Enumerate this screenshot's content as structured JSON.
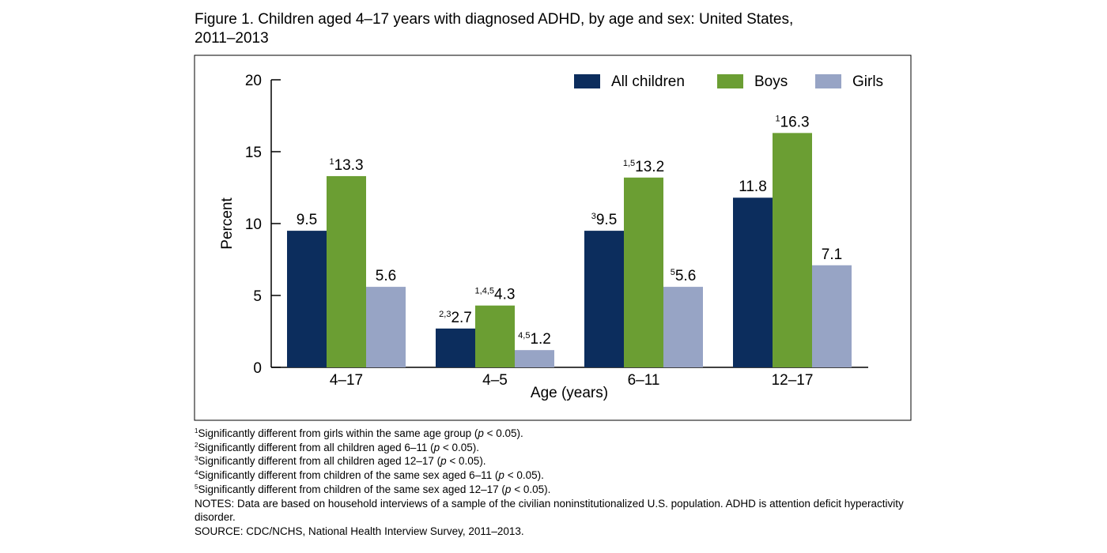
{
  "figure": {
    "title_line1": "Figure 1. Children aged 4–17 years with diagnosed ADHD, by age and sex: United States,",
    "title_line2": "2011–2013"
  },
  "chart_data": {
    "type": "bar",
    "title": "Figure 1. Children aged 4–17 years with diagnosed ADHD, by age and sex: United States, 2011–2013",
    "xlabel": "Age (years)",
    "ylabel": "Percent",
    "ylim": [
      0,
      20
    ],
    "yticks": [
      0,
      5,
      10,
      15,
      20
    ],
    "grid": false,
    "legend_position": "top-right",
    "categories": [
      "4–17",
      "4–5",
      "6–11",
      "12–17"
    ],
    "series": [
      {
        "name": "All children",
        "color": "#0c2d5d",
        "values": [
          9.5,
          2.7,
          9.5,
          11.8
        ],
        "labels": [
          "9.5",
          "2.7",
          "9.5",
          "11.8"
        ],
        "superscripts": [
          "",
          "2,3",
          "3",
          ""
        ]
      },
      {
        "name": "Boys",
        "color": "#6b9e33",
        "values": [
          13.3,
          4.3,
          13.2,
          16.3
        ],
        "labels": [
          "13.3",
          "4.3",
          "13.2",
          "16.3"
        ],
        "superscripts": [
          "1",
          "1,4,5",
          "1,5",
          "1"
        ]
      },
      {
        "name": "Girls",
        "color": "#97a4c5",
        "values": [
          5.6,
          1.2,
          5.6,
          7.1
        ],
        "labels": [
          "5.6",
          "1.2",
          "5.6",
          "7.1"
        ],
        "superscripts": [
          "",
          "4,5",
          "5",
          ""
        ]
      }
    ]
  },
  "footnotes": [
    {
      "num": "1",
      "pre": "Significantly different from girls within the same age group (",
      "p": "p",
      "post": " < 0.05)."
    },
    {
      "num": "2",
      "pre": "Significantly different from all children aged 6–11 (",
      "p": "p",
      "post": " < 0.05)."
    },
    {
      "num": "3",
      "pre": "Significantly different from all children aged 12–17 (",
      "p": "p",
      "post": " < 0.05)."
    },
    {
      "num": "4",
      "pre": "Significantly different from children of the same sex aged 6–11 (",
      "p": "p",
      "post": " < 0.05)."
    },
    {
      "num": "5",
      "pre": "Significantly different from children of the same sex aged 12–17 (",
      "p": "p",
      "post": " < 0.05)."
    }
  ],
  "notes": "NOTES: Data are based on household interviews of a sample of the civilian noninstitutionalized U.S. population. ADHD is attention deficit hyperactivity disorder.",
  "source": "SOURCE: CDC/NCHS, National Health Interview Survey, 2011–2013."
}
